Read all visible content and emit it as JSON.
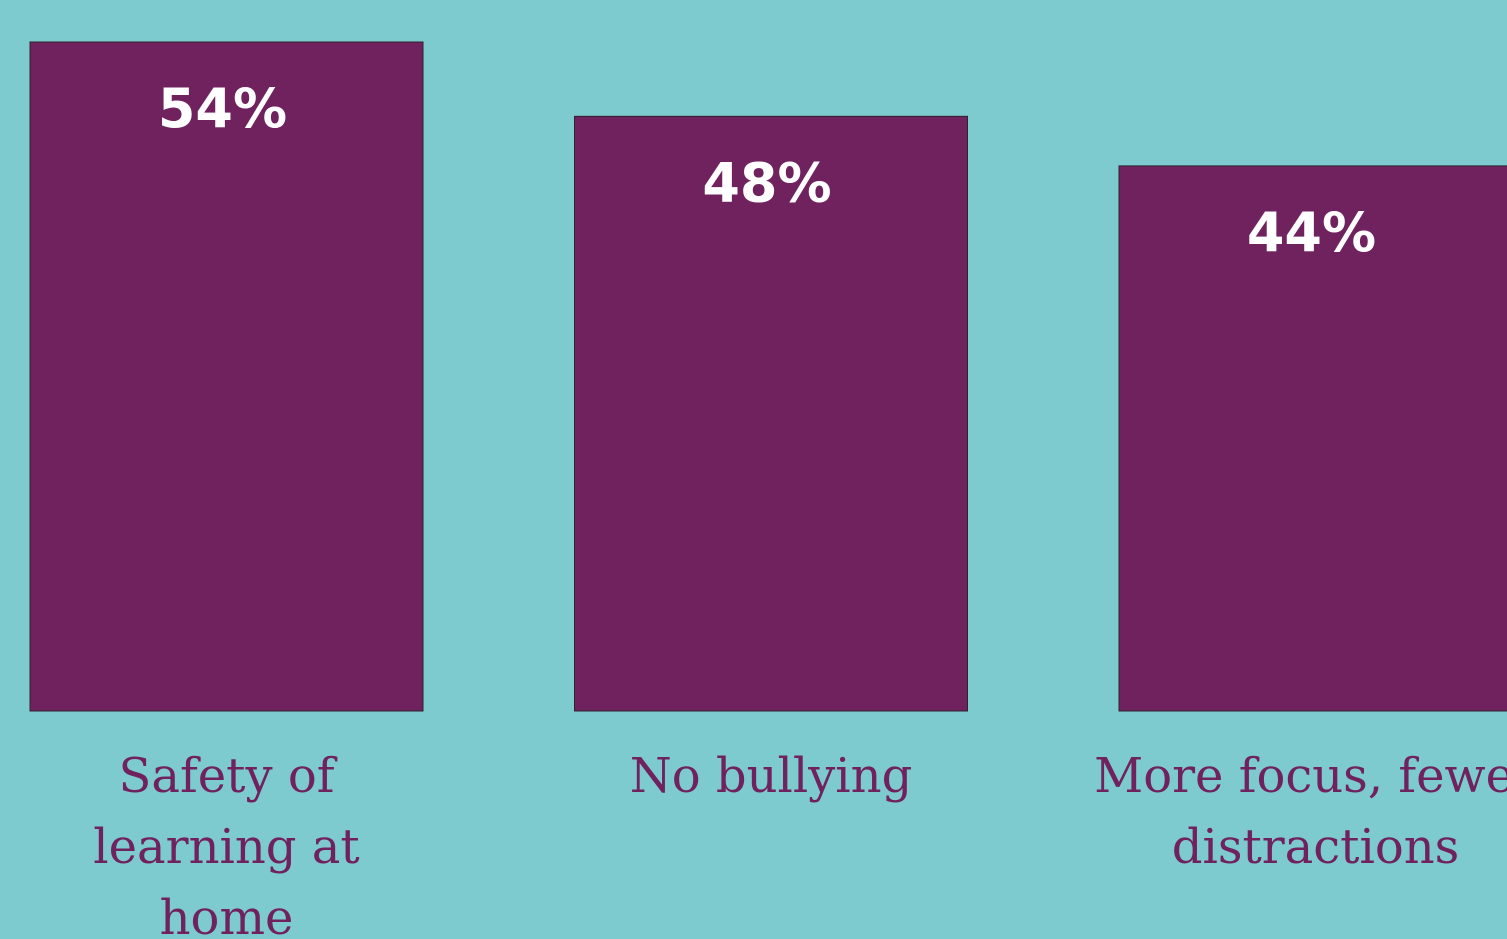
{
  "colors": {
    "background": "#7ecbcf",
    "bar": "#70225e",
    "value_label": "#ffffff",
    "category_label": "#70225e"
  },
  "chart_data": {
    "type": "bar",
    "title": "",
    "xlabel": "",
    "ylabel": "",
    "unit": "%",
    "ylim": [
      0,
      54
    ],
    "grid": false,
    "legend": "none",
    "categories": [
      [
        "Safety of",
        "learning at",
        "home"
      ],
      [
        "No bullying"
      ],
      [
        "More focus, fewer",
        "distractions"
      ]
    ],
    "values": [
      54,
      48,
      44
    ],
    "value_labels": [
      "54%",
      "48%",
      "44%"
    ]
  }
}
